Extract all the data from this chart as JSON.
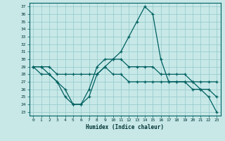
{
  "xlabel": "Humidex (Indice chaleur)",
  "background_color": "#c8e8e8",
  "line_color": "#006060",
  "grid_color": "#90c8c8",
  "xlim": [
    -0.5,
    23.5
  ],
  "ylim": [
    22.5,
    37.5
  ],
  "xticks": [
    0,
    1,
    2,
    3,
    4,
    5,
    6,
    7,
    8,
    9,
    10,
    11,
    12,
    13,
    14,
    15,
    16,
    17,
    18,
    19,
    20,
    21,
    22,
    23
  ],
  "yticks": [
    23,
    24,
    25,
    26,
    27,
    28,
    29,
    30,
    31,
    32,
    33,
    34,
    35,
    36,
    37
  ],
  "s1_x": [
    0,
    1,
    2,
    3,
    4,
    5,
    6,
    7,
    8,
    9,
    10,
    11,
    12,
    13,
    14,
    15,
    16,
    17,
    18,
    19,
    20,
    21,
    22,
    23
  ],
  "s1_y": [
    29,
    29,
    28,
    27,
    25,
    24,
    24,
    26,
    29,
    30,
    30,
    31,
    33,
    35,
    37,
    36,
    30,
    27,
    27,
    27,
    27,
    26,
    26,
    25
  ],
  "s2_x": [
    0,
    1,
    2,
    3,
    4,
    5,
    6,
    7,
    8,
    9,
    10,
    11,
    12,
    13,
    14,
    15,
    16,
    17,
    18,
    19,
    20,
    21,
    22,
    23
  ],
  "s2_y": [
    29,
    29,
    29,
    28,
    28,
    28,
    28,
    28,
    28,
    29,
    30,
    30,
    29,
    29,
    29,
    29,
    28,
    28,
    28,
    28,
    27,
    27,
    27,
    27
  ],
  "s3_x": [
    0,
    1,
    2,
    3,
    4,
    5,
    6,
    7,
    8,
    9,
    10,
    11,
    12,
    13,
    14,
    15,
    16,
    17,
    18,
    19,
    20,
    21,
    22,
    23
  ],
  "s3_y": [
    29,
    28,
    28,
    27,
    26,
    24,
    24,
    25,
    28,
    29,
    28,
    28,
    27,
    27,
    27,
    27,
    27,
    27,
    27,
    27,
    26,
    26,
    25,
    23
  ]
}
